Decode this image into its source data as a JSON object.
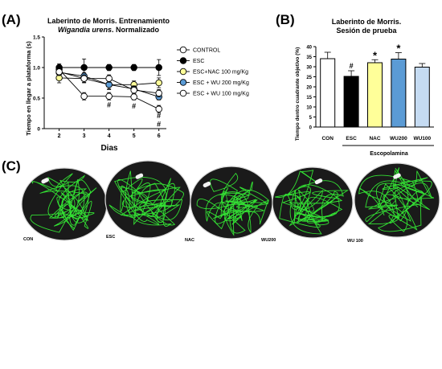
{
  "panels": {
    "A": {
      "letter": "(A)",
      "title_line1": "Laberinto de Morris.  Entrenamiento",
      "title_line2_italic": "Wigandia urens",
      "title_line2_rest": ". Normalizado"
    },
    "B": {
      "letter": "(B)",
      "title_line1": "Laberinto de Morris.",
      "title_line2": "Sesión de prueba"
    },
    "C": {
      "letter": "(C)"
    }
  },
  "chart_data": [
    {
      "type": "line",
      "ylabel": "Tiempo en llegar a plataforma (s)",
      "xlabel": "Dias",
      "x": [
        2,
        3,
        4,
        5,
        6
      ],
      "ylim": [
        0,
        1.5
      ],
      "yticks": [
        0,
        0.5,
        1.0,
        1.5
      ],
      "ytick_labels": [
        "0",
        "0.5",
        "1.0",
        "1.5"
      ],
      "xticks": [
        "2",
        "3",
        "4",
        "5",
        "6"
      ],
      "legend_position": "right",
      "series": [
        {
          "name": "CONTROL",
          "color": "#ffffff",
          "values": [
            0.97,
            0.53,
            0.53,
            0.52,
            0.32
          ],
          "errors": [
            0.06,
            0.06,
            0.06,
            0.05,
            0.06
          ]
        },
        {
          "name": "ESC",
          "color": "#000000",
          "values": [
            1.0,
            1.0,
            1.0,
            1.0,
            1.0
          ],
          "errors": [
            0.06,
            0.14,
            0.05,
            0.05,
            0.13
          ]
        },
        {
          "name": "ESC+NAC 100 mg/Kg",
          "color": "#ffff99",
          "values": [
            0.83,
            0.82,
            0.72,
            0.72,
            0.75
          ],
          "errors": [
            0.08,
            0.07,
            0.07,
            0.06,
            0.08
          ]
        },
        {
          "name": "ESC + WU 200 mg/Kg",
          "color": "#5b9bd5",
          "values": [
            0.92,
            0.86,
            0.72,
            0.65,
            0.52
          ],
          "errors": [
            0.05,
            0.06,
            0.08,
            0.05,
            0.05
          ]
        },
        {
          "name": "ESC + WU 100 mg/Kg",
          "color": "#ffffff",
          "values": [
            0.93,
            0.82,
            0.82,
            0.63,
            0.58
          ],
          "errors": [
            0.05,
            0.06,
            0.06,
            0.06,
            0.06
          ]
        }
      ],
      "annotations": [
        {
          "x": 4,
          "y": 0.39,
          "text": "#"
        },
        {
          "x": 5,
          "y": 0.37,
          "text": "#"
        },
        {
          "x": 6,
          "y": 0.21,
          "text": "#"
        },
        {
          "x": 6,
          "y": 0.07,
          "text": "#"
        }
      ]
    },
    {
      "type": "bar",
      "ylabel": "Tiempo dentro cuadrante objetivo (%)",
      "categories": [
        "CON",
        "ESC",
        "NAC",
        "WU200",
        "WU100"
      ],
      "values": [
        34,
        25.2,
        32,
        33.8,
        29.8
      ],
      "errors": [
        3.2,
        2.8,
        1.5,
        3.2,
        1.8
      ],
      "colors": [
        "#ffffff",
        "#000000",
        "#ffff99",
        "#5b9bd5",
        "#c5dbf2"
      ],
      "ylim": [
        0,
        40
      ],
      "yticks": [
        0,
        5,
        10,
        15,
        20,
        25,
        30,
        35,
        40
      ],
      "ytick_labels": [
        "0",
        "5",
        "10",
        "15",
        "20",
        "25",
        "30",
        "35",
        "40"
      ],
      "group_label": "Escopolamina",
      "annotations": [
        {
          "category": "ESC",
          "text": "#"
        },
        {
          "category": "NAC",
          "text": "*"
        },
        {
          "category": "WU200",
          "text": "*"
        }
      ]
    }
  ],
  "maze_images": [
    {
      "label": "CON"
    },
    {
      "label": "ESC"
    },
    {
      "label": "NAC"
    },
    {
      "label": "WU200"
    },
    {
      "label": "WU 100"
    }
  ]
}
